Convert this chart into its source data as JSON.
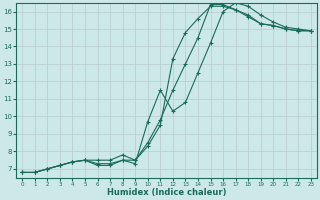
{
  "xlabel": "Humidex (Indice chaleur)",
  "background_color": "#cde8e8",
  "grid_color": "#b8cccc",
  "line_color": "#1a6b5a",
  "xlim": [
    -0.5,
    23.5
  ],
  "ylim": [
    6.5,
    16.5
  ],
  "yticks": [
    7,
    8,
    9,
    10,
    11,
    12,
    13,
    14,
    15,
    16
  ],
  "xticks": [
    0,
    1,
    2,
    3,
    4,
    5,
    6,
    7,
    8,
    9,
    10,
    11,
    12,
    13,
    14,
    15,
    16,
    17,
    18,
    19,
    20,
    21,
    22,
    23
  ],
  "line1_x": [
    0,
    1,
    2,
    3,
    4,
    5,
    6,
    7,
    8,
    9,
    10,
    11,
    12,
    13,
    14,
    15,
    16,
    17,
    18,
    19,
    20,
    21,
    22,
    23
  ],
  "line1_y": [
    6.8,
    6.8,
    7.0,
    7.2,
    7.4,
    7.5,
    7.5,
    7.5,
    7.8,
    7.5,
    8.5,
    9.8,
    11.5,
    13.0,
    14.5,
    16.4,
    16.4,
    16.1,
    15.8,
    15.3,
    15.2,
    15.0,
    14.9,
    14.9
  ],
  "line2_x": [
    0,
    1,
    2,
    3,
    4,
    5,
    6,
    7,
    8,
    9,
    10,
    11,
    12,
    13,
    14,
    15,
    16,
    17,
    18,
    19,
    20,
    21,
    22,
    23
  ],
  "line2_y": [
    6.8,
    6.8,
    7.0,
    7.2,
    7.4,
    7.5,
    7.2,
    7.2,
    7.5,
    7.3,
    9.7,
    11.5,
    10.3,
    10.8,
    12.5,
    14.2,
    16.0,
    16.5,
    16.3,
    15.8,
    15.4,
    15.1,
    15.0,
    14.9
  ],
  "line3_x": [
    0,
    1,
    2,
    3,
    4,
    5,
    6,
    7,
    8,
    9,
    10,
    11,
    12,
    13,
    14,
    15,
    16,
    17,
    18,
    19,
    20,
    21,
    22,
    23
  ],
  "line3_y": [
    6.8,
    6.8,
    7.0,
    7.2,
    7.4,
    7.5,
    7.3,
    7.3,
    7.5,
    7.5,
    8.3,
    9.5,
    13.3,
    14.8,
    15.6,
    16.3,
    16.3,
    16.1,
    15.7,
    15.3,
    15.2,
    15.0,
    14.9,
    14.9
  ]
}
